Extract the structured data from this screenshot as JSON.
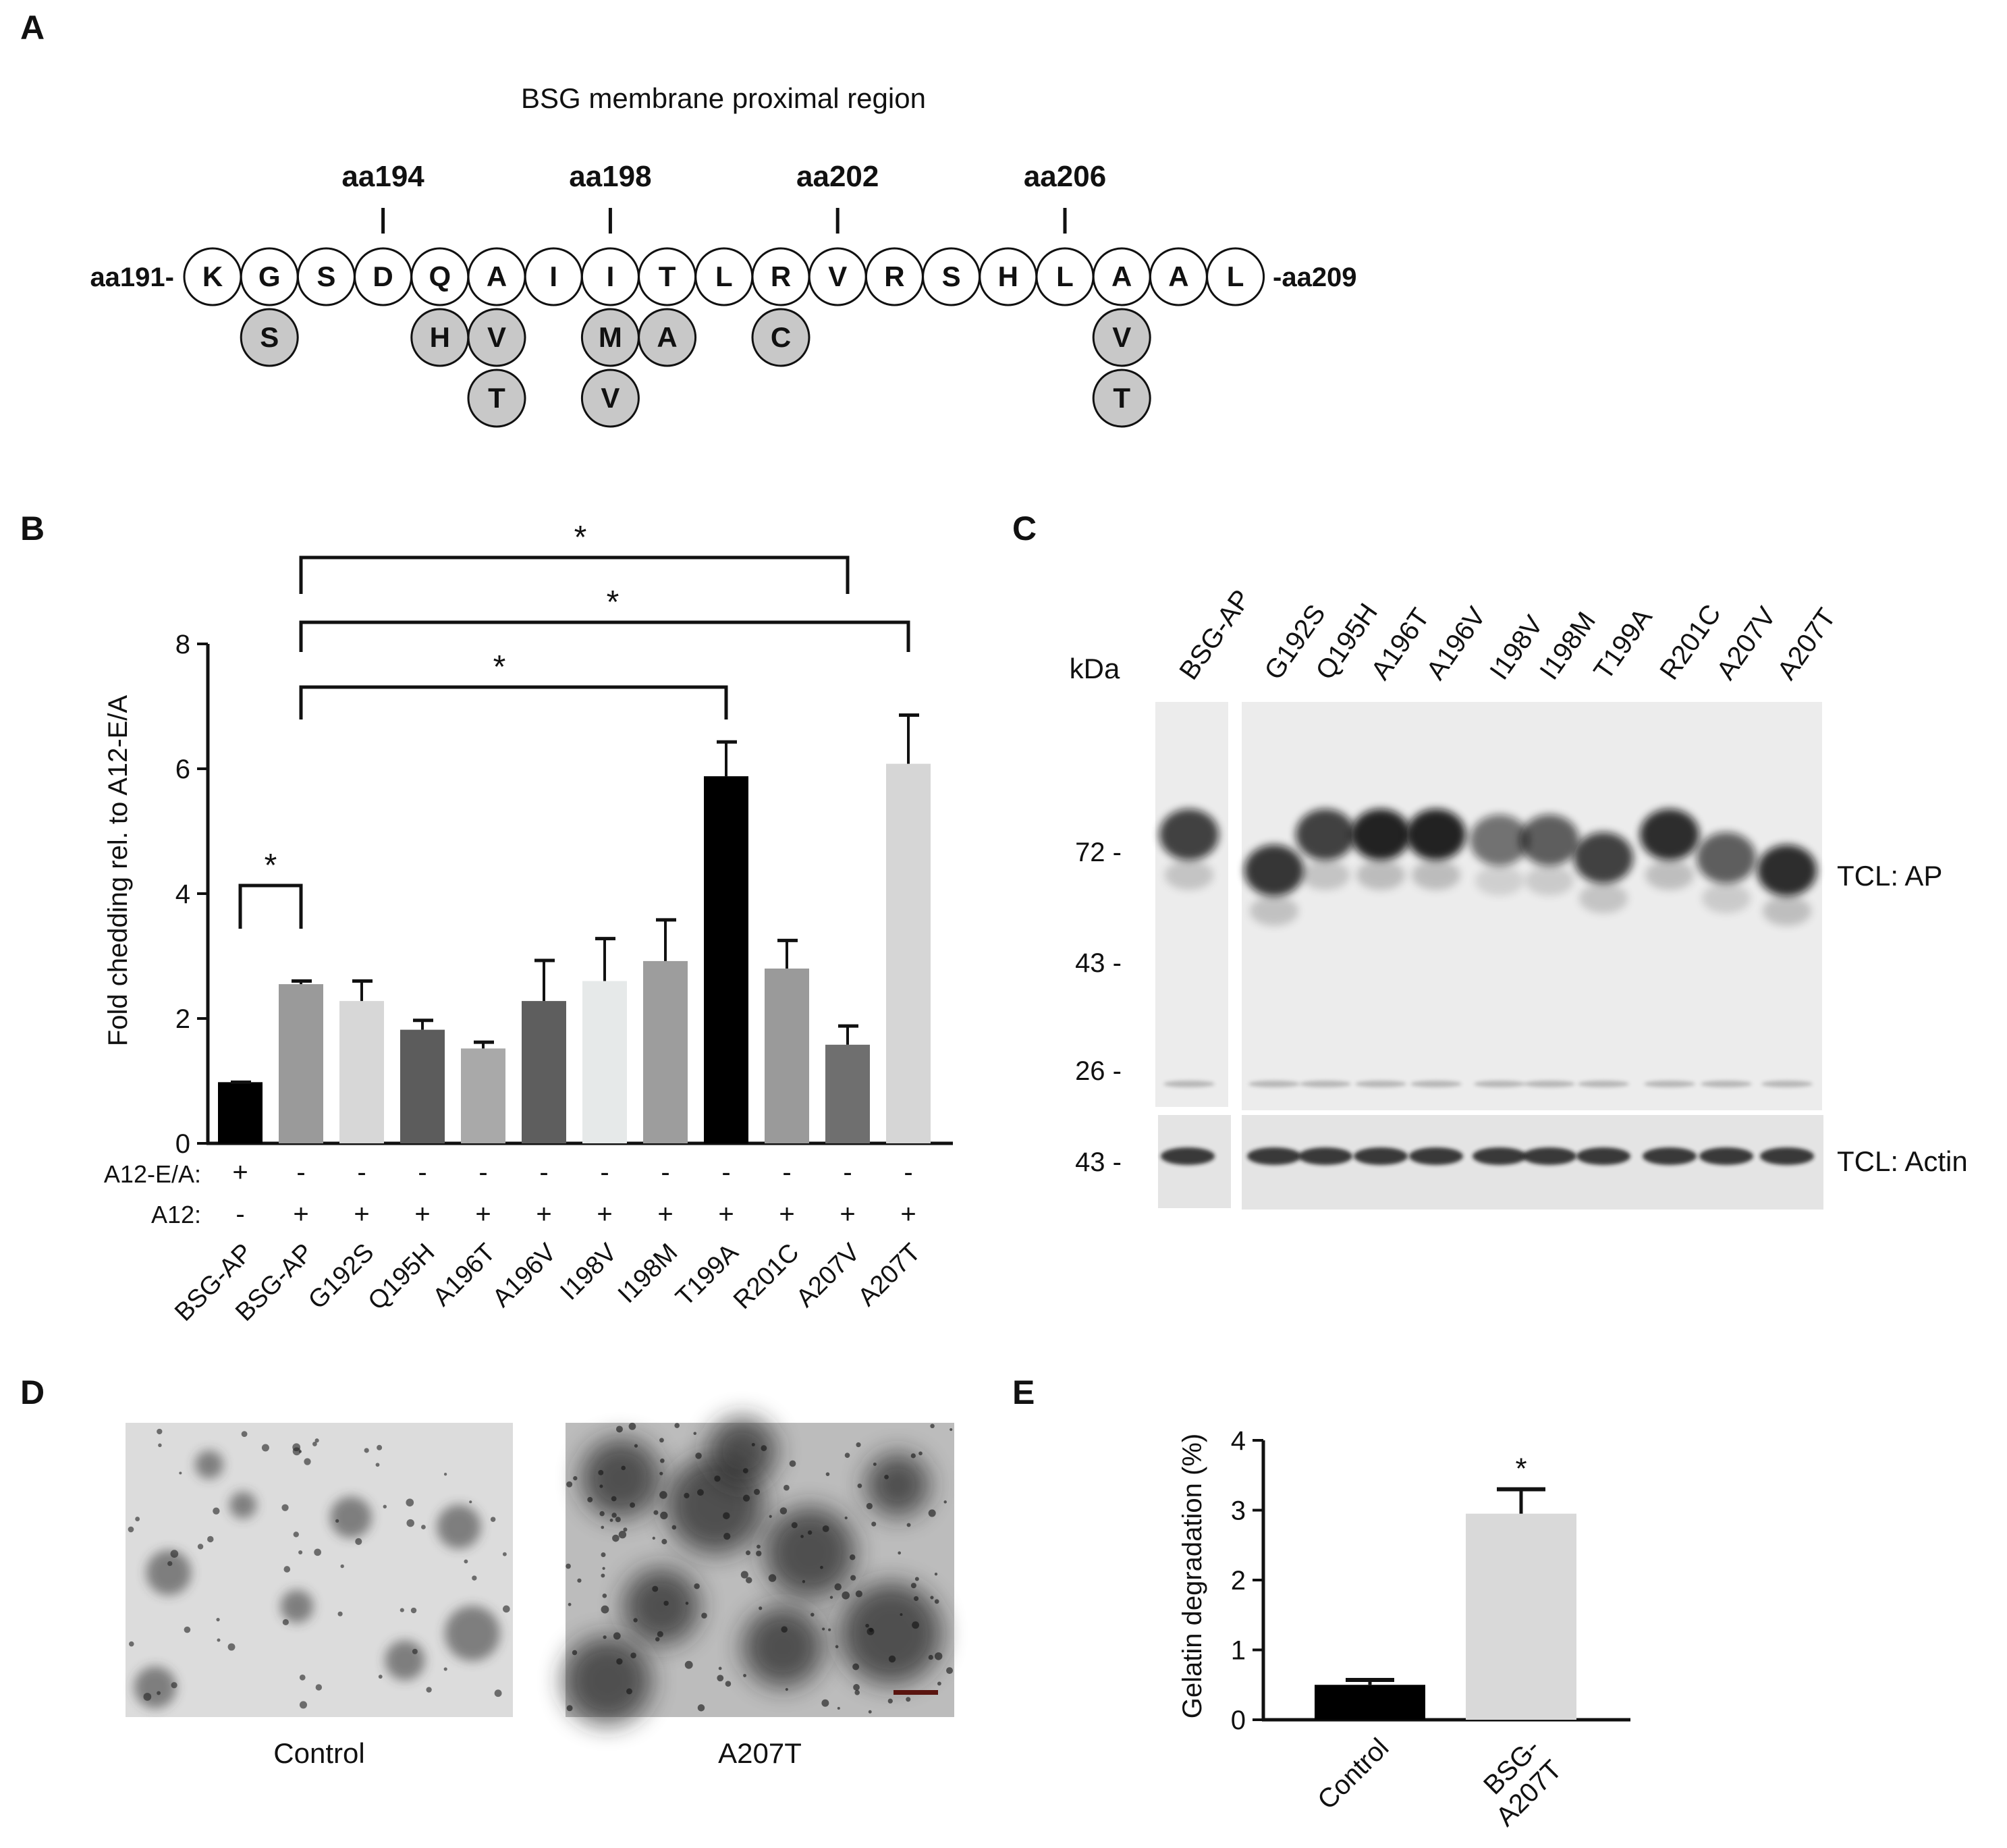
{
  "panels": {
    "a": {
      "letter": "A",
      "title": "BSG membrane proximal region",
      "start_label": "aa191-",
      "end_label": "-aa209",
      "positions": [
        "aa194",
        "aa198",
        "aa202",
        "aa206"
      ],
      "residues": [
        "K",
        "G",
        "S",
        "D",
        "Q",
        "A",
        "I",
        "I",
        "T",
        "L",
        "R",
        "V",
        "R",
        "S",
        "H",
        "L",
        "A",
        "A",
        "L"
      ],
      "mutations": [
        {
          "index": 1,
          "row": 1,
          "res": "S"
        },
        {
          "index": 4,
          "row": 1,
          "res": "H"
        },
        {
          "index": 5,
          "row": 1,
          "res": "V"
        },
        {
          "index": 5,
          "row": 2,
          "res": "T"
        },
        {
          "index": 7,
          "row": 1,
          "res": "M"
        },
        {
          "index": 7,
          "row": 2,
          "res": "V"
        },
        {
          "index": 8,
          "row": 1,
          "res": "A"
        },
        {
          "index": 10,
          "row": 1,
          "res": "C"
        },
        {
          "index": 16,
          "row": 1,
          "res": "V"
        },
        {
          "index": 16,
          "row": 2,
          "res": "T"
        }
      ],
      "colors": {
        "native_fill": "#ffffff",
        "mutant_fill": "#c8c8c8"
      }
    },
    "b": {
      "letter": "B",
      "row1_label": "A12-E/A:",
      "row2_label": "A12:",
      "row1_signs": [
        "+",
        "-",
        "-",
        "-",
        "-",
        "-",
        "-",
        "-",
        "-",
        "-",
        "-",
        "-"
      ],
      "row2_signs": [
        "-",
        "+",
        "+",
        "+",
        "+",
        "+",
        "+",
        "+",
        "+",
        "+",
        "+",
        "+"
      ],
      "sig_marker": "*"
    },
    "c": {
      "letter": "C",
      "kda_label": "kDa",
      "lanes": [
        "BSG-AP",
        "G192S",
        "Q195H",
        "A196T",
        "A196V",
        "I198V",
        "I198M",
        "T199A",
        "R201C",
        "A207V",
        "A207T"
      ],
      "markers_top": [
        "72 -",
        "43 -",
        "26 -"
      ],
      "marker_bottom": "43 -",
      "label_top": "TCL: AP",
      "label_bottom": "TCL: Actin",
      "band_intensity_top": [
        0.85,
        0.9,
        0.85,
        1.0,
        1.0,
        0.6,
        0.7,
        0.85,
        0.95,
        0.7,
        0.95
      ],
      "band_mw_top": [
        78,
        66,
        78,
        78,
        78,
        76,
        76,
        70,
        78,
        70,
        66
      ]
    },
    "d": {
      "letter": "D",
      "captions": [
        "Control",
        "A207T"
      ]
    },
    "e": {
      "letter": "E",
      "sig_marker": "*"
    }
  },
  "chart_data": [
    {
      "type": "bar",
      "panel": "B",
      "categories": [
        "BSG-AP",
        "BSG-AP",
        "G192S",
        "Q195H",
        "A196T",
        "A196V",
        "I198V",
        "I198M",
        "T199A",
        "R201C",
        "A207V",
        "A207T"
      ],
      "values": [
        0.98,
        2.55,
        2.28,
        1.82,
        1.52,
        2.28,
        2.6,
        2.92,
        5.88,
        2.8,
        1.58,
        6.08
      ],
      "errors": [
        0.0,
        0.05,
        0.32,
        0.15,
        0.1,
        0.65,
        0.68,
        0.66,
        0.55,
        0.45,
        0.3,
        0.78
      ],
      "colors": [
        "#000000",
        "#9a9a9a",
        "#d7d7d7",
        "#5c5c5c",
        "#a9a9a9",
        "#5e5e5e",
        "#e6e9e9",
        "#9d9d9d",
        "#000000",
        "#9a9a9a",
        "#6f6f6f",
        "#d6d6d6"
      ],
      "ylabel": "Fold chedding rel. to A12-E/A",
      "ylim": [
        0,
        8
      ],
      "yticks": [
        0,
        2,
        4,
        6,
        8
      ],
      "comparisons": [
        {
          "from": 0,
          "to": 1,
          "label": "*"
        },
        {
          "from": 1,
          "to": 8,
          "label": "*"
        },
        {
          "from": 1,
          "to": 11,
          "label": "*"
        },
        {
          "from": 1,
          "to": 10,
          "label": "*"
        }
      ]
    },
    {
      "type": "bar",
      "panel": "E",
      "categories": [
        "Control",
        "BSG-\nA207T"
      ],
      "values": [
        0.5,
        2.95
      ],
      "errors": [
        0.07,
        0.35
      ],
      "colors": [
        "#000000",
        "#d9d9d9"
      ],
      "ylabel": "Gelatin degradation (%)",
      "ylim": [
        0,
        4
      ],
      "yticks": [
        0,
        1,
        2,
        3,
        4
      ],
      "annotation": "*"
    }
  ]
}
